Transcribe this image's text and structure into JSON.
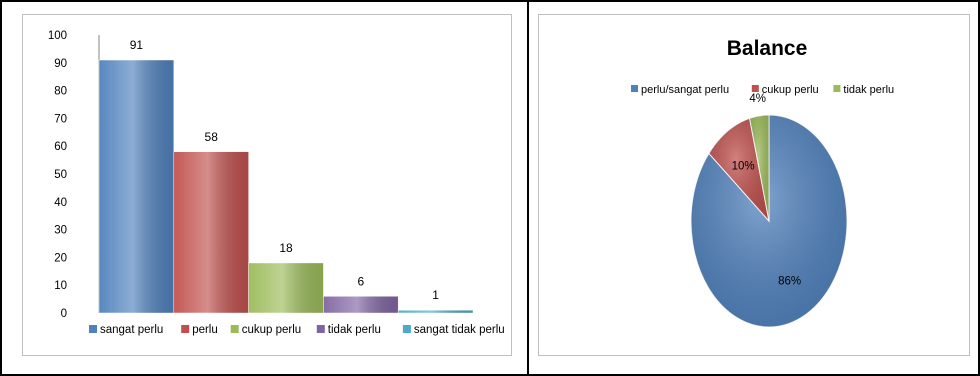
{
  "chart_data": [
    {
      "type": "bar",
      "categories": [
        "sangat perlu",
        "perlu",
        "cukup perlu",
        "tidak perlu",
        "sangat tidak perlu"
      ],
      "values": [
        91,
        58,
        18,
        6,
        1
      ],
      "data_labels": [
        "91",
        "58",
        "18",
        "6",
        "1"
      ],
      "colors": [
        "#4f81bd",
        "#c0504d",
        "#9bbb59",
        "#8064a2",
        "#4bacc6"
      ],
      "ylim": [
        0,
        100
      ],
      "yticks": [
        "0",
        "10",
        "20",
        "30",
        "40",
        "50",
        "60",
        "70",
        "80",
        "90",
        "100"
      ],
      "legend_position": "bottom",
      "grid": false
    },
    {
      "type": "pie",
      "title": "Balance",
      "labels": [
        "perlu/sangat perlu",
        "cukup perlu",
        "tidak perlu"
      ],
      "values": [
        86,
        10,
        4
      ],
      "data_labels": [
        "86%",
        "10%",
        "4%"
      ],
      "colors": [
        "#4f81bd",
        "#c0504d",
        "#9bbb59"
      ],
      "legend_position": "top",
      "style": "3d-tilted"
    }
  ]
}
